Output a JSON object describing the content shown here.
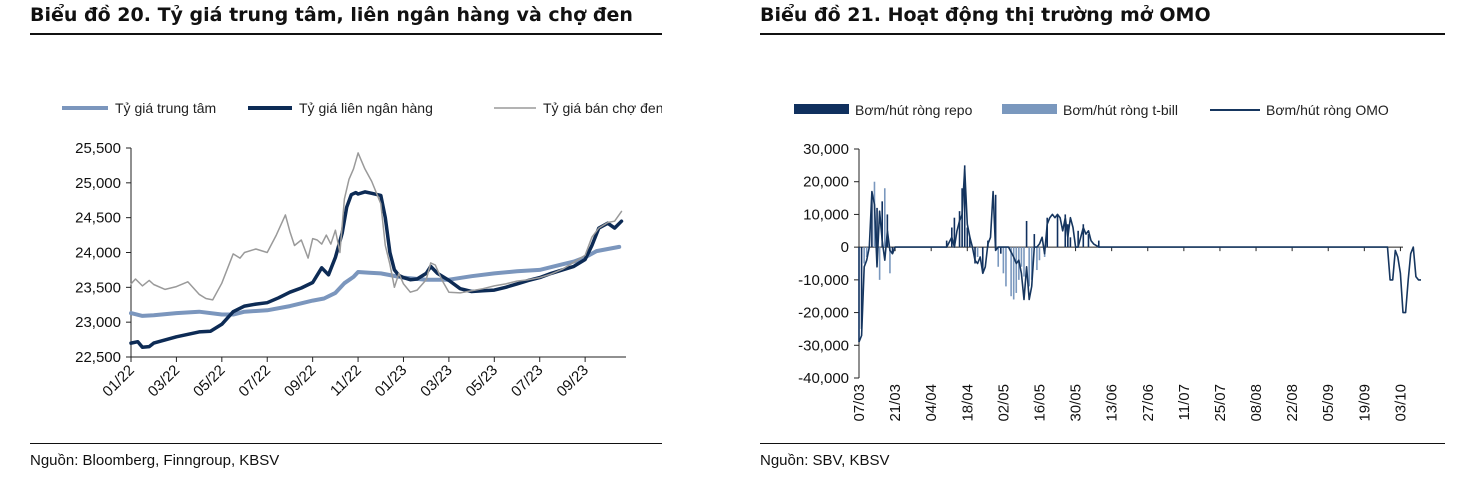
{
  "colors": {
    "central": "#7b96bd",
    "interbank": "#0d2b55",
    "blackmarket": "#9a9a9a",
    "repo": "#10305e",
    "tbill": "#7a98be",
    "omo": "#16365f"
  },
  "left": {
    "title": "Biểu đồ 20. Tỷ giá trung tâm, liên ngân hàng và chợ đen",
    "source": "Nguồn: Bloomberg, Finngroup, KBSV",
    "chart_data": {
      "type": "line",
      "x_tick_labels": [
        "01/22",
        "03/22",
        "05/22",
        "07/22",
        "09/22",
        "11/22",
        "01/23",
        "03/23",
        "05/23",
        "07/23",
        "09/23"
      ],
      "y_tick_labels": [
        "25,500",
        "25,000",
        "24,500",
        "24,000",
        "23,500",
        "23,000",
        "22,500"
      ],
      "ylim": [
        22500,
        25500
      ],
      "x_range_months": [
        0,
        21.8
      ],
      "legend_position": "top",
      "series": [
        {
          "name": "Tỷ giá trung  tâm",
          "color_key": "central",
          "width": 4,
          "x": [
            0,
            0.5,
            1,
            2,
            3,
            4,
            4.5,
            5,
            6,
            7,
            8,
            8.5,
            9,
            9.4,
            9.8,
            10,
            10.5,
            11,
            12,
            13,
            14,
            15,
            16,
            17,
            18,
            19,
            19.5,
            20,
            20.5,
            21,
            21.5
          ],
          "y": [
            23130,
            23090,
            23100,
            23130,
            23150,
            23110,
            23110,
            23150,
            23170,
            23230,
            23310,
            23340,
            23420,
            23560,
            23650,
            23720,
            23710,
            23700,
            23640,
            23610,
            23610,
            23660,
            23700,
            23730,
            23750,
            23830,
            23870,
            23930,
            24020,
            24050,
            24080
          ]
        },
        {
          "name": "Tỷ giá liên ngân hàng",
          "color_key": "interbank",
          "width": 3.5,
          "x": [
            0,
            0.3,
            0.5,
            0.8,
            1,
            2,
            3,
            3.5,
            4,
            4.5,
            5,
            5.5,
            6,
            6.5,
            7,
            7.5,
            8,
            8.4,
            8.7,
            9,
            9.3,
            9.5,
            9.7,
            9.9,
            10,
            10.3,
            10.6,
            11,
            11.2,
            11.4,
            11.6,
            11.8,
            12,
            12.3,
            12.6,
            13,
            13.2,
            13.5,
            14,
            14.5,
            15,
            15.5,
            16,
            16.5,
            17,
            17.5,
            18,
            18.5,
            19,
            19.5,
            20,
            20.3,
            20.6,
            21,
            21.3,
            21.6
          ],
          "y": [
            22700,
            22720,
            22640,
            22650,
            22700,
            22790,
            22860,
            22870,
            22970,
            23150,
            23230,
            23260,
            23280,
            23350,
            23430,
            23490,
            23570,
            23780,
            23680,
            23930,
            24280,
            24650,
            24830,
            24860,
            24840,
            24870,
            24850,
            24820,
            24500,
            24000,
            23750,
            23670,
            23640,
            23610,
            23620,
            23700,
            23800,
            23700,
            23600,
            23480,
            23440,
            23450,
            23460,
            23500,
            23550,
            23600,
            23640,
            23700,
            23750,
            23800,
            23900,
            24100,
            24350,
            24420,
            24350,
            24450
          ]
        },
        {
          "name": "Tỷ giá bán chợ đen",
          "color_key": "blackmarket",
          "width": 1.5,
          "x": [
            0,
            0.2,
            0.5,
            0.8,
            1,
            1.5,
            2,
            2.5,
            3,
            3.3,
            3.6,
            4,
            4.5,
            4.8,
            5,
            5.5,
            6,
            6.4,
            6.8,
            7,
            7.2,
            7.5,
            7.8,
            8,
            8.2,
            8.4,
            8.6,
            8.8,
            9,
            9.2,
            9.4,
            9.6,
            9.8,
            10,
            10.3,
            10.6,
            11,
            11.2,
            11.4,
            11.6,
            11.8,
            12,
            12.3,
            12.6,
            13,
            13.2,
            13.4,
            13.7,
            14,
            14.5,
            15,
            15.5,
            16,
            16.5,
            17,
            17.5,
            18,
            18.5,
            19,
            19.5,
            20,
            20.3,
            20.6,
            21,
            21.3,
            21.6
          ],
          "y": [
            23550,
            23620,
            23520,
            23600,
            23540,
            23470,
            23510,
            23580,
            23400,
            23340,
            23320,
            23560,
            23980,
            23920,
            24000,
            24050,
            24000,
            24250,
            24540,
            24300,
            24100,
            24180,
            23920,
            24200,
            24180,
            24120,
            24250,
            24120,
            24320,
            24000,
            24770,
            25050,
            25200,
            25430,
            25200,
            25020,
            24700,
            24100,
            23830,
            23500,
            23700,
            23550,
            23430,
            23460,
            23610,
            23850,
            23820,
            23600,
            23430,
            23420,
            23450,
            23480,
            23520,
            23550,
            23590,
            23610,
            23640,
            23690,
            23760,
            23860,
            23960,
            24220,
            24350,
            24430,
            24450,
            24590
          ]
        }
      ]
    }
  },
  "right": {
    "title": "Biểu đồ 21. Hoạt động thị trường mở OMO",
    "source": "Nguồn: SBV, KBSV",
    "chart_data": {
      "type": "bar",
      "x_tick_labels": [
        "07/03",
        "21/03",
        "04/04",
        "18/04",
        "02/05",
        "16/05",
        "30/05",
        "13/06",
        "27/06",
        "11/07",
        "25/07",
        "08/08",
        "22/08",
        "05/09",
        "19/09",
        "03/10"
      ],
      "y_tick_labels": [
        "30,000",
        "20,000",
        "10,000",
        "0",
        "-10,000",
        "-20,000",
        "-30,000",
        "-40,000"
      ],
      "ylim": [
        -40000,
        30000
      ],
      "x_range_days": [
        0,
        211
      ],
      "legend_position": "top",
      "series": [
        {
          "name": "Bơm/hút ròng repo",
          "color_key": "repo",
          "kind": "bar",
          "x": [
            0,
            1,
            5,
            7,
            9,
            11,
            13,
            34,
            36,
            37,
            39,
            40,
            41,
            42,
            43,
            45,
            48,
            50,
            53,
            55,
            65,
            68,
            73,
            77,
            80,
            81,
            82,
            85,
            87,
            89,
            93
          ],
          "y": [
            -29000,
            -25000,
            16000,
            12000,
            14000,
            10000,
            -2000,
            2000,
            6000,
            9000,
            11000,
            18000,
            25000,
            6000,
            3000,
            -5000,
            -8000,
            2000,
            16000,
            -2000,
            8000,
            4000,
            9000,
            10000,
            10000,
            7000,
            3000,
            5000,
            7000,
            4000,
            2000
          ]
        },
        {
          "name": "Bơm/hút ròng t-bill",
          "color_key": "tbill",
          "kind": "bar",
          "x": [
            2,
            3,
            6,
            8,
            10,
            12,
            46,
            54,
            56,
            57,
            59,
            60,
            61,
            62,
            63,
            64,
            66,
            67,
            69,
            70,
            72
          ],
          "y": [
            -5000,
            -3000,
            20000,
            -10000,
            18000,
            -8000,
            -3000,
            -6000,
            -8000,
            -12000,
            -15000,
            -16000,
            -14000,
            -10000,
            -6000,
            -9000,
            -12000,
            -10000,
            -7000,
            -4000,
            -3000
          ]
        },
        {
          "name": "Bơm/hút ròng OMO",
          "color_key": "omo",
          "kind": "line",
          "x": [
            0,
            1,
            2,
            3,
            4,
            5,
            6,
            7,
            8,
            9,
            10,
            11,
            12,
            13,
            14,
            16,
            30,
            32,
            34,
            36,
            37,
            38,
            39,
            40,
            41,
            42,
            43,
            44,
            45,
            46,
            47,
            48,
            49,
            50,
            51,
            52,
            53,
            54,
            55,
            58,
            60,
            61,
            62,
            63,
            64,
            65,
            66,
            67,
            68,
            69,
            70,
            71,
            72,
            73,
            74,
            75,
            76,
            77,
            78,
            79,
            80,
            81,
            82,
            83,
            84,
            85,
            86,
            87,
            88,
            89,
            90,
            91,
            93,
            96,
            205,
            206,
            207,
            208,
            209,
            210,
            211,
            212,
            213,
            214,
            215,
            216,
            217,
            218
          ],
          "y": [
            -29000,
            -27000,
            -6000,
            -4000,
            0,
            17000,
            13000,
            -6000,
            11000,
            2000,
            -4000,
            5000,
            -1000,
            -2000,
            0,
            0,
            0,
            0,
            0,
            3000,
            0,
            5000,
            8000,
            10000,
            24000,
            7000,
            3000,
            0,
            -4000,
            -5000,
            -3000,
            -8000,
            -6000,
            1000,
            3000,
            17000,
            -1000,
            0,
            0,
            0,
            -3000,
            -5000,
            -4000,
            -8000,
            -16000,
            -6000,
            -16000,
            -12000,
            0,
            0,
            1000,
            3000,
            -2000,
            7000,
            9000,
            10000,
            9000,
            10000,
            9000,
            5000,
            9000,
            3000,
            9000,
            6000,
            0,
            0,
            3000,
            6000,
            4000,
            5000,
            2000,
            1000,
            0,
            0,
            0,
            -10000,
            -10000,
            -1000,
            -3000,
            -8000,
            -20000,
            -20000,
            -10000,
            -2000,
            0,
            -9000,
            -10000,
            -10000
          ]
        }
      ]
    }
  }
}
